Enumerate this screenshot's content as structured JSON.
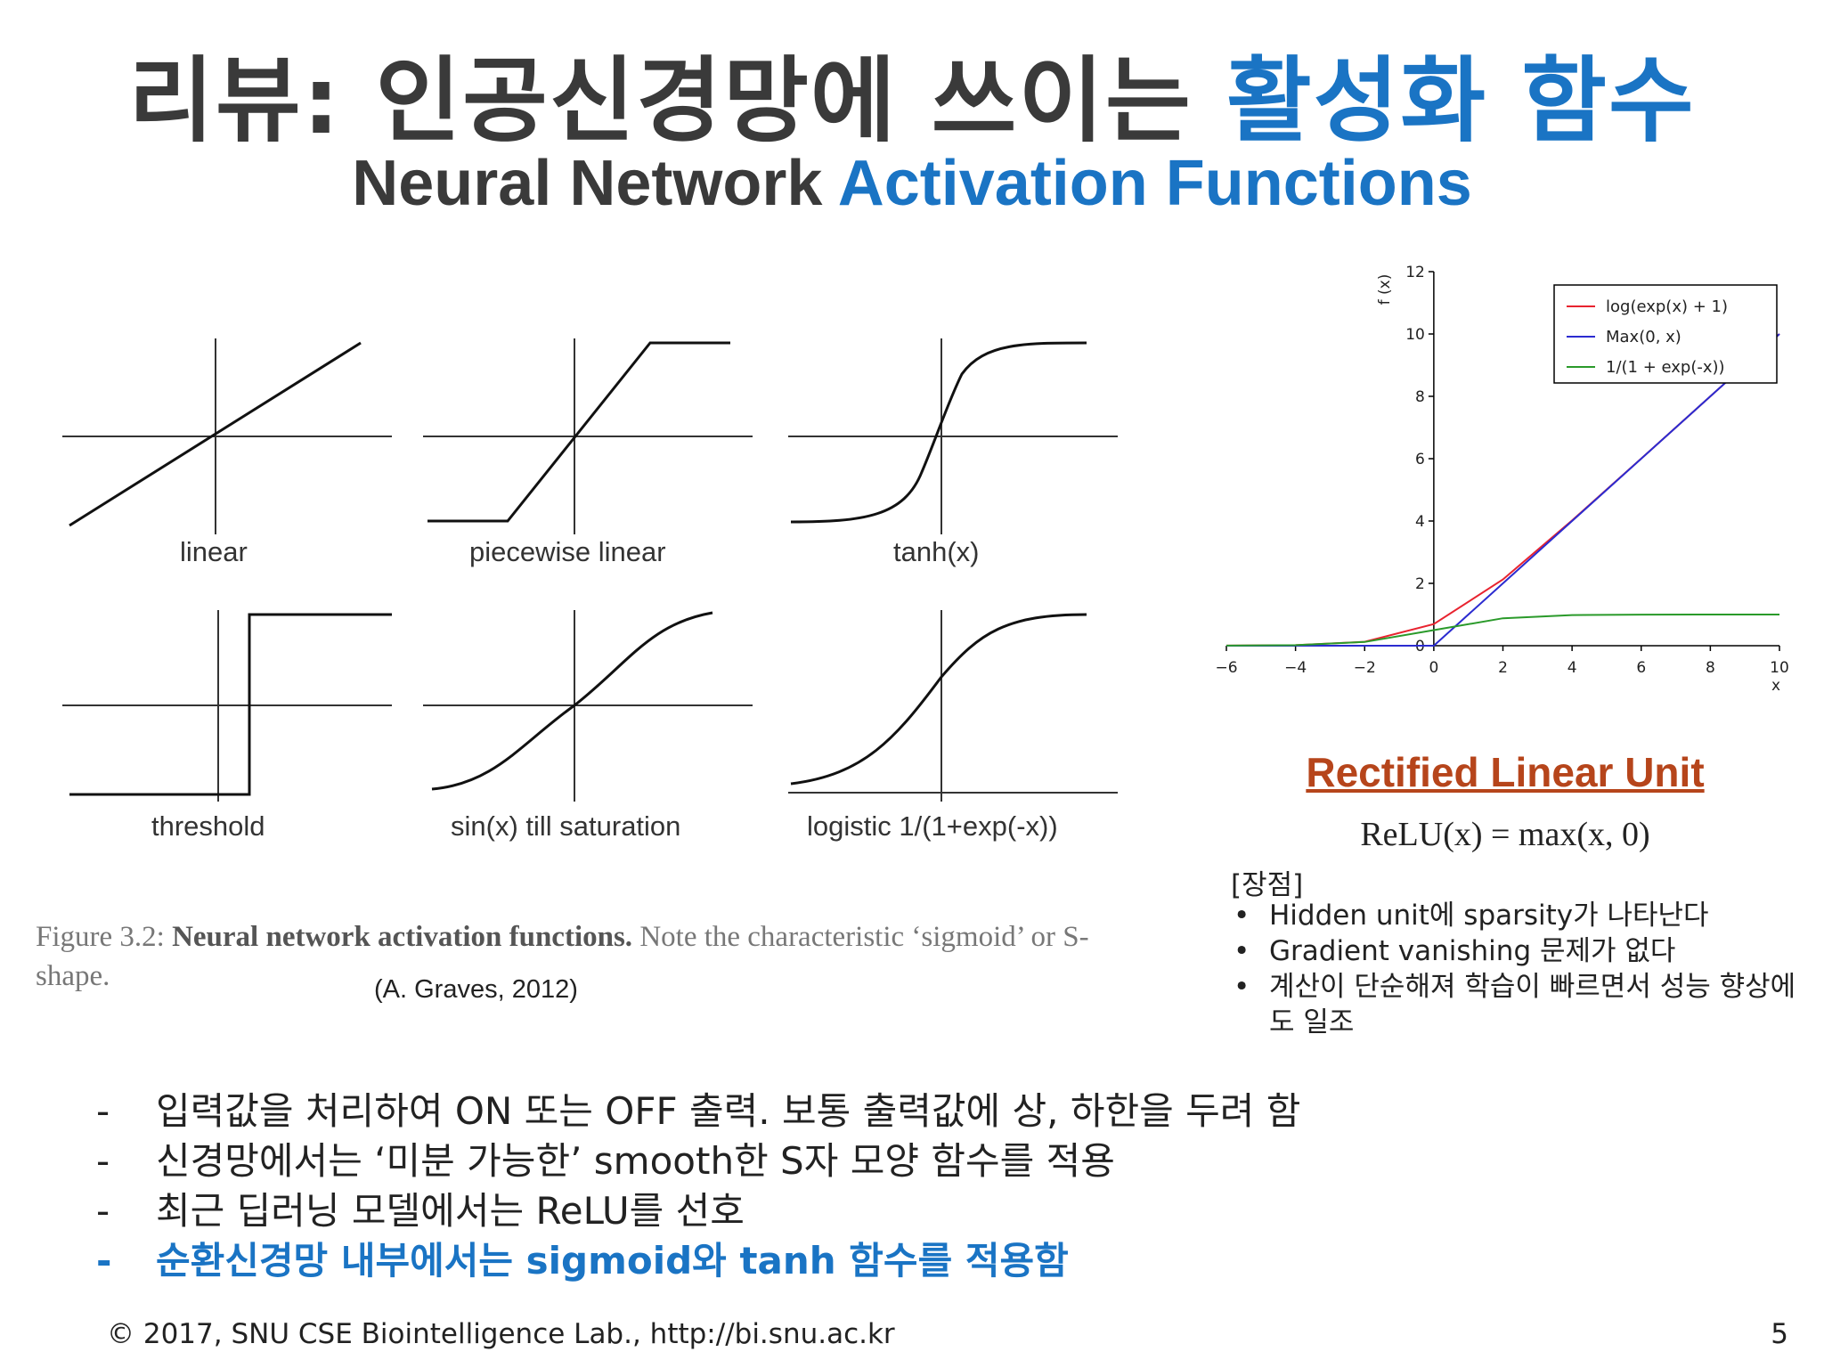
{
  "title": {
    "korean_main": "리뷰: 인공신경망에 쓰이는 ",
    "korean_accent": "활성화 함수",
    "english_main": "Neural Network ",
    "english_accent": "Activation Functions"
  },
  "figure": {
    "plots": [
      {
        "caption": "linear"
      },
      {
        "caption": "piecewise linear"
      },
      {
        "caption": "tanh(x)"
      },
      {
        "caption": "threshold"
      },
      {
        "caption": "sin(x) till saturation"
      },
      {
        "caption": "logistic 1/(1+exp(-x))"
      }
    ],
    "caption_prefix": "Figure 3.2: ",
    "caption_bold": "Neural network activation functions.",
    "caption_rest": " Note the characteristic ‘sigmoid’ or S-shape.",
    "source": "(A. Graves, 2012)"
  },
  "relu": {
    "heading": "Rectified Linear Unit",
    "formula": "ReLU(x) = max(x, 0)",
    "pros_label": "[장점]",
    "pros": [
      "Hidden unit에 sparsity가 나타난다",
      "Gradient vanishing 문제가 없다",
      "계산이 단순해져 학습이 빠르면서 성능 향상에도 일조"
    ]
  },
  "notes": [
    {
      "text": "입력값을 처리하여 ON 또는 OFF 출력. 보통 출력값에 상, 하한을 두려 함",
      "highlight": false
    },
    {
      "text": "신경망에서는 ‘미분 가능한’ smooth한 S자 모양 함수를 적용",
      "highlight": false
    },
    {
      "text": "최근 딥러닝 모델에서는 ReLU를 선호",
      "highlight": false
    },
    {
      "text": "순환신경망 내부에서는 sigmoid와 tanh 함수를 적용함",
      "highlight": true
    }
  ],
  "footer": "© 2017, SNU CSE Biointelligence Lab., http://bi.snu.ac.kr",
  "page_number": "5",
  "colors": {
    "accent": "#1a74c4",
    "relu_heading": "#b6451b"
  },
  "chart_data": {
    "type": "line",
    "x": [
      -6,
      -4,
      -2,
      0,
      2,
      4,
      6,
      8,
      10
    ],
    "xlabel": "x",
    "ylabel": "f (x)",
    "xlim": [
      -6,
      10
    ],
    "ylim": [
      0,
      12
    ],
    "xticks": [
      -6,
      -4,
      -2,
      0,
      2,
      4,
      6,
      8,
      10
    ],
    "yticks": [
      0,
      2,
      4,
      6,
      8,
      10,
      12
    ],
    "legend_position": "top-right",
    "series": [
      {
        "name": "log(exp(x) + 1)",
        "color": "#e8232f",
        "values": [
          0.0025,
          0.018,
          0.127,
          0.693,
          2.127,
          4.018,
          6.002,
          8.0,
          10.0
        ]
      },
      {
        "name": "Max(0, x)",
        "color": "#2b2bd0",
        "values": [
          0,
          0,
          0,
          0,
          2,
          4,
          6,
          8,
          10
        ]
      },
      {
        "name": "1/(1 + exp(-x))",
        "color": "#2a9a2a",
        "values": [
          0.0025,
          0.018,
          0.119,
          0.5,
          0.881,
          0.982,
          0.998,
          1.0,
          1.0
        ]
      }
    ]
  }
}
